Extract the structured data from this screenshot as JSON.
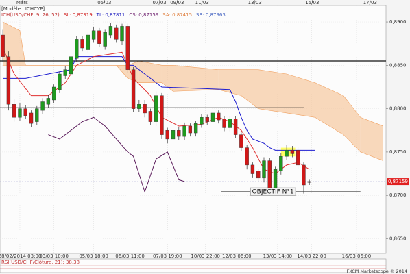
{
  "chart_data": {
    "type": "candlestick",
    "header": [
      "[Modèle : ICHCYP]"
    ],
    "legend": [
      {
        "text": "ICH(USD/CHF, 9, 26, 52)",
        "color": "#c03030"
      },
      {
        "text": "SL: 0,87319",
        "color": "#d02020"
      },
      {
        "text": "TL: 0,87811",
        "color": "#2020c0"
      },
      {
        "text": "CS: 0,87159",
        "color": "#6a1a6a"
      },
      {
        "text": "SA: 0,87415",
        "color": "#e08040"
      },
      {
        "text": "SB: 0,87963",
        "color": "#4060c0"
      }
    ],
    "xlim": [
      -0.5,
      67.5
    ],
    "ylim": [
      0.8633,
      0.8919
    ],
    "yticks": [
      {
        "value": 0.89,
        "label": "0,8900"
      },
      {
        "value": 0.885,
        "label": "0,8850"
      },
      {
        "value": 0.88,
        "label": "0,8800"
      },
      {
        "value": 0.875,
        "label": "0,8750"
      },
      {
        "value": 0.87,
        "label": "0,8700"
      },
      {
        "value": 0.865,
        "label": "0,8650"
      }
    ],
    "xticks": [
      {
        "value": 3,
        "label": "28/02/2014 03:00"
      },
      {
        "value": 9,
        "label": "03/03 10:00"
      },
      {
        "value": 16,
        "label": "05/03 18:00"
      },
      {
        "value": 22.4,
        "label": "06/03 11:00"
      },
      {
        "value": 29,
        "label": "07/03 19:00"
      },
      {
        "value": 35.7,
        "label": "10/03 22:00"
      },
      {
        "value": 41.2,
        "label": "12/03 06:00"
      },
      {
        "value": 48.4,
        "label": "13/03 14:00"
      },
      {
        "value": 54.4,
        "label": "14/03 22:00"
      },
      {
        "value": 62.3,
        "label": "16/03 06:00"
      }
    ],
    "top_ticks": [
      {
        "value": 3.4,
        "label": "Mars"
      },
      {
        "value": 17.9,
        "label": "05/03"
      },
      {
        "value": 27.6,
        "label": "07/03"
      },
      {
        "value": 30.7,
        "label": "09/03"
      },
      {
        "value": 35.1,
        "label": "11/03"
      },
      {
        "value": 44.4,
        "label": "13/03"
      },
      {
        "value": 54.5,
        "label": "15/03"
      },
      {
        "value": 64.7,
        "label": "17/03"
      }
    ],
    "up_color": "#1f9a1f",
    "down_color": "#d01818",
    "open": [
      0.8885,
      0.886,
      0.8805,
      0.879,
      0.88,
      0.8795,
      0.8785,
      0.8798,
      0.8805,
      0.881,
      0.8822,
      0.8838,
      0.884,
      0.8858,
      0.888,
      0.8868,
      0.888,
      0.889,
      0.8872,
      0.8885,
      0.8893,
      0.8878,
      0.8895,
      0.8845,
      0.88,
      0.8805,
      0.8797,
      0.8785,
      0.8815,
      0.8775,
      0.8765,
      0.8775,
      0.8768,
      0.878,
      0.8772,
      0.8782,
      0.879,
      0.8785,
      0.8795,
      0.8788,
      0.8778,
      0.8788,
      0.877,
      0.8755,
      0.8735,
      0.8728,
      0.872,
      0.874,
      0.8705,
      0.8728,
      0.8745,
      0.8752,
      0.8752,
      0.8735,
      0.8716
    ],
    "high": [
      0.8891,
      0.8866,
      0.8811,
      0.8806,
      0.8804,
      0.8798,
      0.8803,
      0.8812,
      0.8816,
      0.8828,
      0.8843,
      0.8849,
      0.8863,
      0.8884,
      0.8884,
      0.8888,
      0.8894,
      0.8893,
      0.8891,
      0.8899,
      0.8897,
      0.8898,
      0.8898,
      0.8848,
      0.881,
      0.881,
      0.88,
      0.882,
      0.8818,
      0.8778,
      0.8779,
      0.8779,
      0.8784,
      0.8783,
      0.8786,
      0.8794,
      0.8793,
      0.8799,
      0.8798,
      0.8791,
      0.8791,
      0.8791,
      0.8773,
      0.8758,
      0.8738,
      0.8731,
      0.8744,
      0.8743,
      0.8733,
      0.8749,
      0.8758,
      0.8757,
      0.8756,
      0.8738,
      0.8718
    ],
    "low": [
      0.8854,
      0.8798,
      0.8785,
      0.8786,
      0.8788,
      0.8779,
      0.8781,
      0.8794,
      0.8801,
      0.8806,
      0.8818,
      0.8834,
      0.8836,
      0.8854,
      0.8866,
      0.8864,
      0.8876,
      0.8871,
      0.8868,
      0.8881,
      0.8876,
      0.8874,
      0.8841,
      0.8796,
      0.8796,
      0.879,
      0.8781,
      0.878,
      0.8765,
      0.876,
      0.8761,
      0.8764,
      0.8764,
      0.8768,
      0.8768,
      0.8778,
      0.8781,
      0.8781,
      0.8783,
      0.8774,
      0.8774,
      0.8766,
      0.8751,
      0.873,
      0.872,
      0.8716,
      0.8715,
      0.87,
      0.8701,
      0.8724,
      0.8741,
      0.8744,
      0.8731,
      0.8702,
      0.8712
    ],
    "close": [
      0.886,
      0.8805,
      0.879,
      0.88,
      0.8792,
      0.8783,
      0.88,
      0.8808,
      0.8812,
      0.8825,
      0.884,
      0.8845,
      0.886,
      0.888,
      0.887,
      0.8885,
      0.889,
      0.8875,
      0.8888,
      0.8895,
      0.888,
      0.8895,
      0.8845,
      0.88,
      0.8805,
      0.8795,
      0.8785,
      0.8815,
      0.877,
      0.8765,
      0.8775,
      0.8768,
      0.878,
      0.8772,
      0.8783,
      0.879,
      0.8785,
      0.8795,
      0.8787,
      0.8778,
      0.8788,
      0.877,
      0.8755,
      0.8735,
      0.8725,
      0.872,
      0.874,
      0.8705,
      0.873,
      0.8745,
      0.8752,
      0.8748,
      0.8735,
      0.8712,
      0.8715
    ],
    "lines": [
      {
        "color": "#1e1ed0",
        "x": [
          0,
          4,
          8,
          12,
          13,
          21,
          22,
          23,
          27,
          28,
          40,
          41,
          42,
          43,
          44,
          46,
          47,
          48,
          55
        ],
        "values": [
          0.8835,
          0.8835,
          0.884,
          0.8845,
          0.886,
          0.886,
          0.885,
          0.885,
          0.883,
          0.8825,
          0.8822,
          0.8808,
          0.879,
          0.8775,
          0.8765,
          0.876,
          0.8755,
          0.8752,
          0.8752
        ]
      },
      {
        "color": "#e03030",
        "x": [
          0,
          2,
          5,
          8,
          11,
          13,
          16,
          21,
          22,
          23,
          26,
          28,
          31,
          35,
          38,
          40,
          42,
          44,
          46,
          48,
          50,
          52,
          54
        ],
        "values": [
          0.887,
          0.884,
          0.8815,
          0.8815,
          0.883,
          0.885,
          0.886,
          0.8865,
          0.885,
          0.8835,
          0.8815,
          0.879,
          0.878,
          0.8782,
          0.879,
          0.8785,
          0.8775,
          0.8755,
          0.873,
          0.8725,
          0.8735,
          0.8738,
          0.873
        ]
      },
      {
        "color": "#5a1a5a",
        "x": [
          8,
          10,
          12,
          14,
          16,
          18,
          20,
          22,
          23,
          25,
          27,
          29,
          31,
          32
        ],
        "values": [
          0.877,
          0.8765,
          0.8775,
          0.8785,
          0.879,
          0.878,
          0.8765,
          0.875,
          0.8745,
          0.8704,
          0.8742,
          0.875,
          0.8718,
          0.8716
        ]
      }
    ],
    "cloud": {
      "color": "#f6c9a0",
      "line_color": "#f0a060",
      "x": [
        0,
        3,
        4,
        20,
        22,
        24,
        28,
        30,
        38,
        42,
        45,
        50,
        55,
        60,
        63,
        67
      ],
      "span_a": [
        0.89,
        0.889,
        0.885,
        0.885,
        0.885,
        0.8855,
        0.885,
        0.885,
        0.8845,
        0.8845,
        0.8845,
        0.884,
        0.883,
        0.8815,
        0.879,
        0.878
      ],
      "span_b": [
        0.885,
        0.885,
        0.885,
        0.885,
        0.8835,
        0.883,
        0.883,
        0.882,
        0.8822,
        0.8815,
        0.88,
        0.8795,
        0.879,
        0.877,
        0.875,
        0.874
      ]
    },
    "levels": [
      {
        "value": 0.8855,
        "from": -0.5,
        "to": 67.5
      },
      {
        "value": 0.8801,
        "from": -0.5,
        "to": 53
      },
      {
        "value": 0.8704,
        "from": 38.5,
        "to": 63
      }
    ],
    "annotation": "OBJECTIF N°1",
    "target_box": {
      "low": 0.8745,
      "high": 0.8755,
      "from": 49,
      "to": 51.5
    },
    "price_tag": {
      "value": 0.87159,
      "label": "0,87159"
    },
    "rsi_label": "RSI(USD/CHF/Clôture, 21): 38,38",
    "footer": "FXCM Marketscope © 2014"
  }
}
